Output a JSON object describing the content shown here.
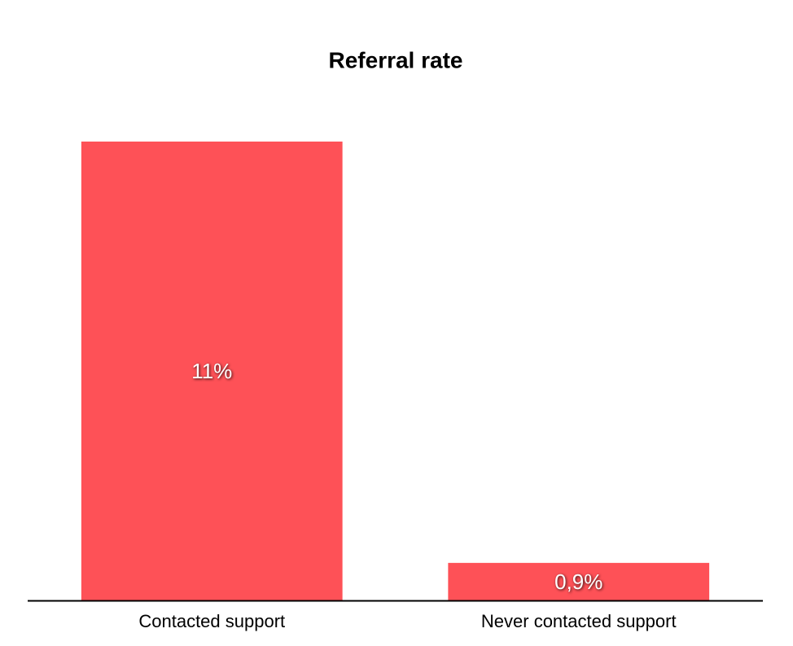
{
  "chart_data": {
    "type": "bar",
    "title": "Referral rate",
    "categories": [
      "Contacted support",
      "Never contacted support"
    ],
    "values": [
      11,
      0.9
    ],
    "value_labels": [
      "11%",
      "0,9%"
    ],
    "color": "#fe5157"
  }
}
